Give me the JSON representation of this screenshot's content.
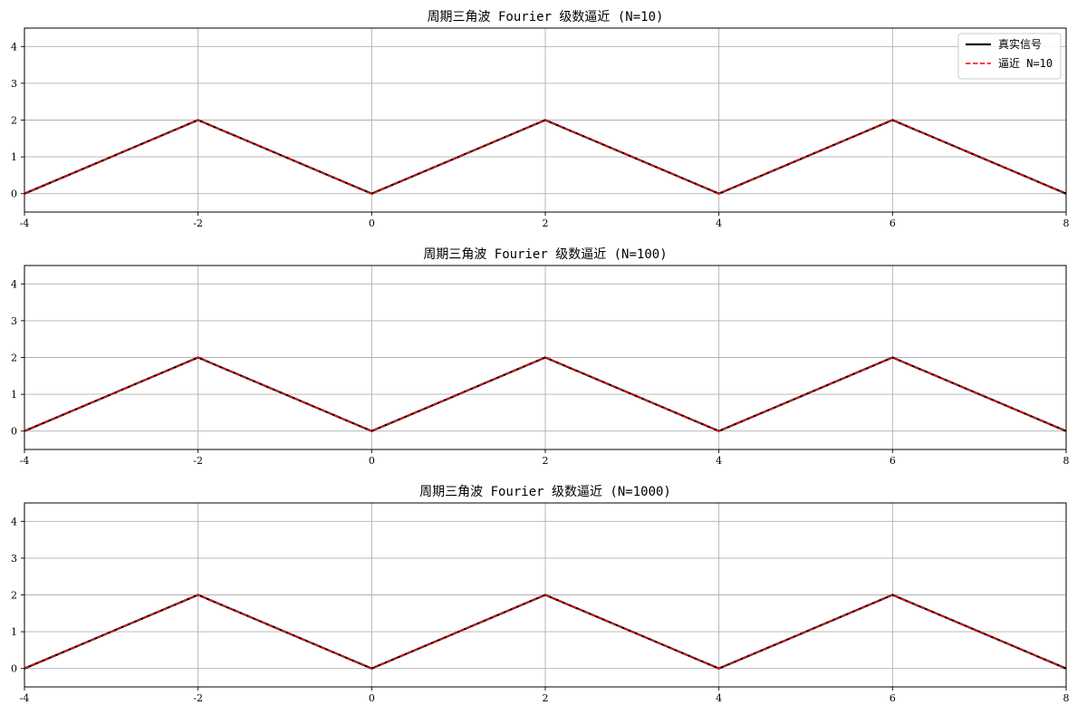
{
  "chart_data": [
    {
      "type": "line",
      "title": "周期三角波 Fourier 级数逼近 (N=10)",
      "xlabel": "",
      "ylabel": "",
      "xlim": [
        -4,
        8
      ],
      "ylim": [
        -0.5,
        4.5
      ],
      "xticks": [
        -4,
        -2,
        0,
        2,
        4,
        6,
        8
      ],
      "yticks": [
        0,
        1,
        2,
        3,
        4
      ],
      "grid": true,
      "legend": "top-right",
      "series": [
        {
          "name": "真实信号",
          "color": "#000000",
          "style": "solid",
          "x": [
            -4,
            -2,
            0,
            2,
            4,
            6,
            8
          ],
          "y": [
            0,
            2,
            0,
            2,
            0,
            2,
            0
          ]
        },
        {
          "name": "逼近 N=10",
          "color": "#ff0000",
          "style": "dashed",
          "x": [
            -4,
            -2,
            0,
            2,
            4,
            6,
            8
          ],
          "y": [
            0,
            2,
            0,
            2,
            0,
            2,
            0
          ]
        }
      ]
    },
    {
      "type": "line",
      "title": "周期三角波 Fourier 级数逼近 (N=100)",
      "xlabel": "",
      "ylabel": "",
      "xlim": [
        -4,
        8
      ],
      "ylim": [
        -0.5,
        4.5
      ],
      "xticks": [
        -4,
        -2,
        0,
        2,
        4,
        6,
        8
      ],
      "yticks": [
        0,
        1,
        2,
        3,
        4
      ],
      "grid": true,
      "legend": "none",
      "series": [
        {
          "name": "",
          "color": "#000000",
          "style": "solid",
          "x": [
            -4,
            -2,
            0,
            2,
            4,
            6,
            8
          ],
          "y": [
            0,
            2,
            0,
            2,
            0,
            2,
            0
          ]
        },
        {
          "name": "",
          "color": "#ff0000",
          "style": "dashed",
          "x": [
            -4,
            -2,
            0,
            2,
            4,
            6,
            8
          ],
          "y": [
            0,
            2,
            0,
            2,
            0,
            2,
            0
          ]
        }
      ]
    },
    {
      "type": "line",
      "title": "周期三角波 Fourier 级数逼近 (N=1000)",
      "xlabel": "",
      "ylabel": "",
      "xlim": [
        -4,
        8
      ],
      "ylim": [
        -0.5,
        4.5
      ],
      "xticks": [
        -4,
        -2,
        0,
        2,
        4,
        6,
        8
      ],
      "yticks": [
        0,
        1,
        2,
        3,
        4
      ],
      "grid": true,
      "legend": "none",
      "series": [
        {
          "name": "",
          "color": "#000000",
          "style": "solid",
          "x": [
            -4,
            -2,
            0,
            2,
            4,
            6,
            8
          ],
          "y": [
            0,
            2,
            0,
            2,
            0,
            2,
            0
          ]
        },
        {
          "name": "",
          "color": "#ff0000",
          "style": "dashed",
          "x": [
            -4,
            -2,
            0,
            2,
            4,
            6,
            8
          ],
          "y": [
            0,
            2,
            0,
            2,
            0,
            2,
            0
          ]
        }
      ]
    }
  ]
}
